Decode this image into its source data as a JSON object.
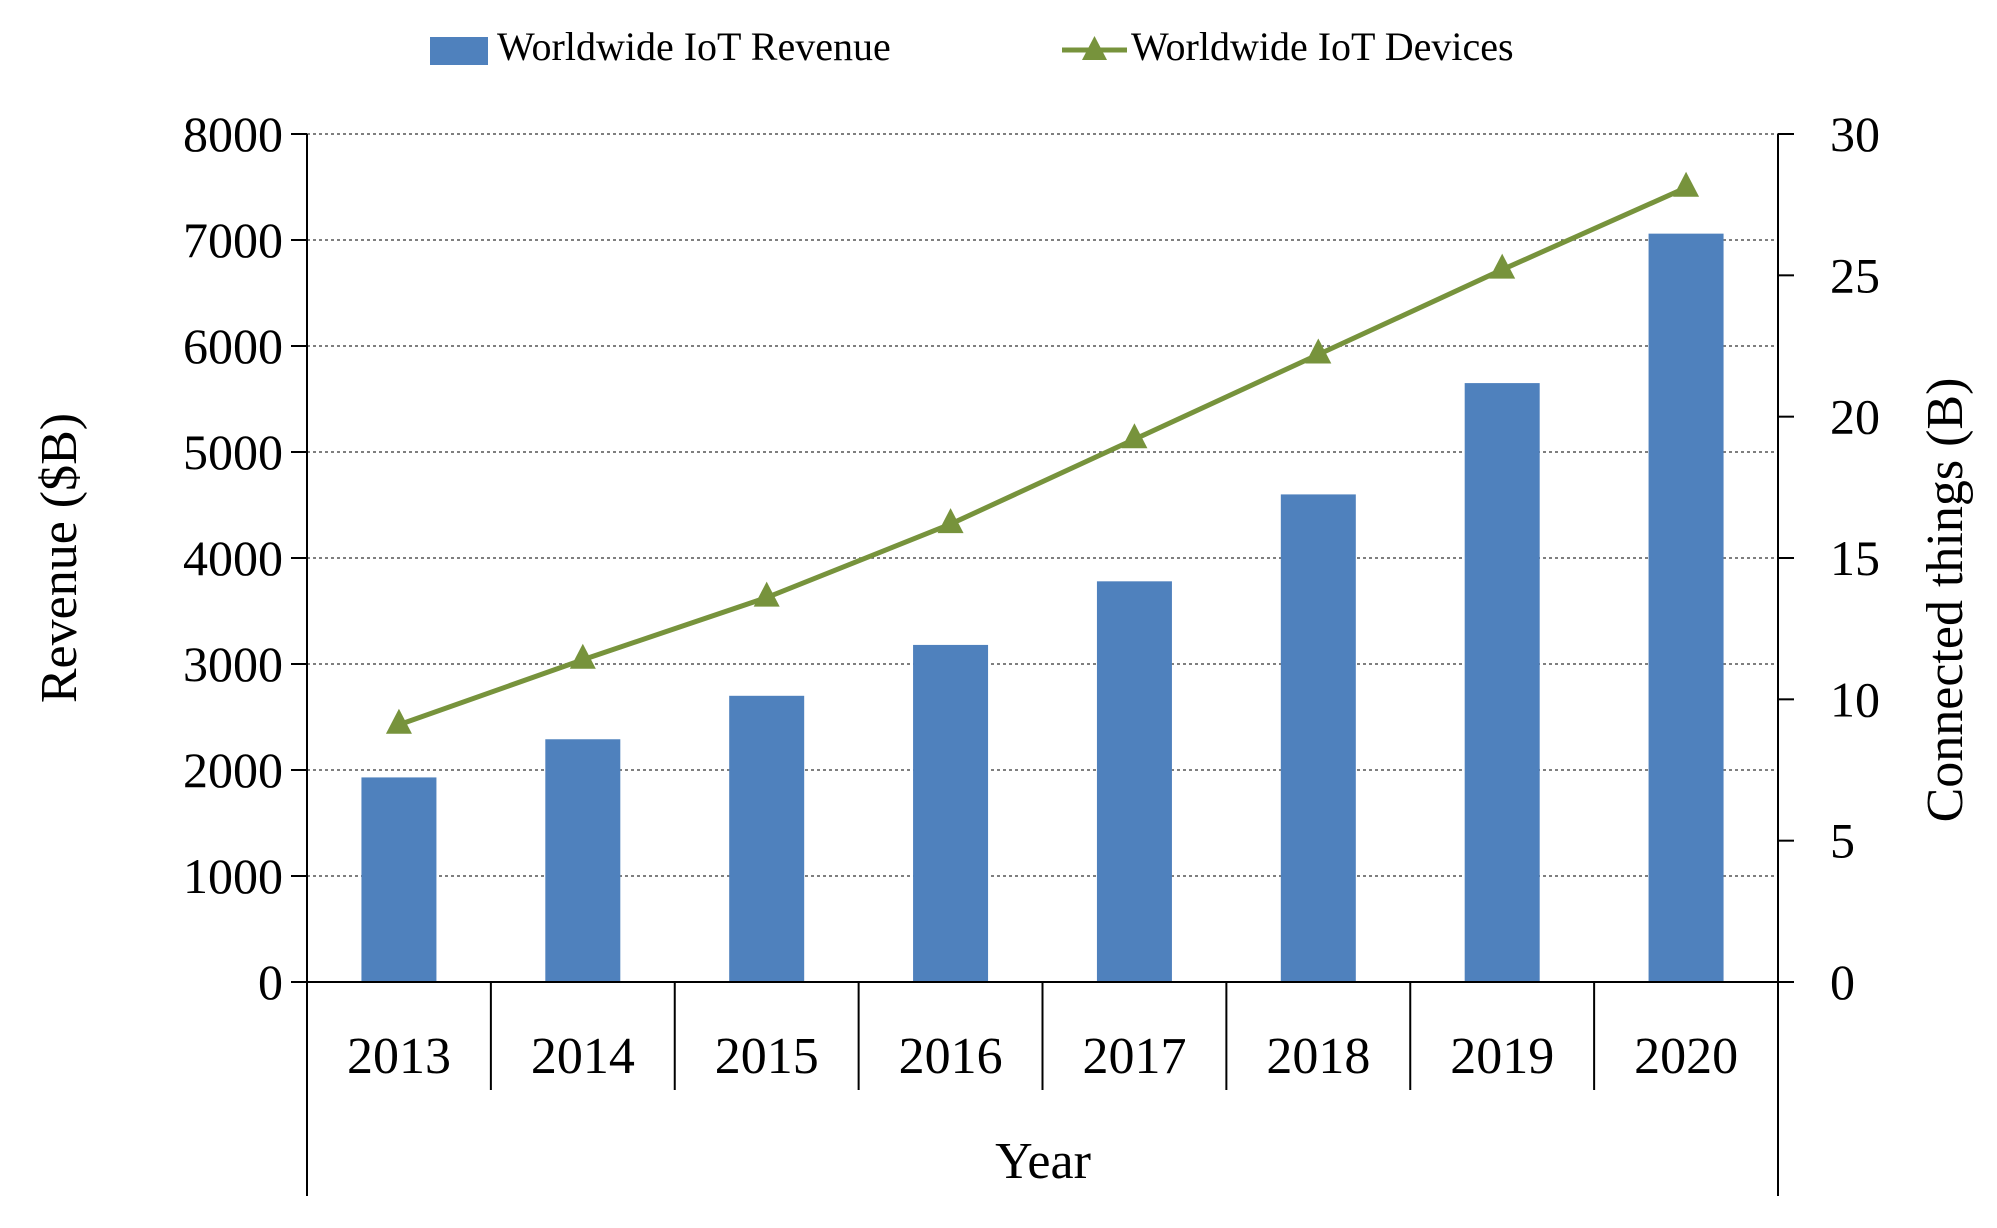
{
  "chart_data": {
    "type": "bar",
    "categories": [
      "2013",
      "2014",
      "2015",
      "2016",
      "2017",
      "2018",
      "2019",
      "2020"
    ],
    "series": [
      {
        "name": "Worldwide IoT Revenue",
        "type": "bar",
        "axis": "left",
        "color": "#4F81BD",
        "values": [
          1930,
          2290,
          2700,
          3180,
          3780,
          4600,
          5650,
          7060
        ]
      },
      {
        "name": "Worldwide IoT Devices",
        "type": "line",
        "axis": "right",
        "color": "#77933C",
        "values": [
          9.1,
          11.4,
          13.6,
          16.2,
          19.2,
          22.2,
          25.2,
          28.1
        ]
      }
    ],
    "xlabel": "Year",
    "ylabel": "Revenue ($B)",
    "y2label": "Connected things (B)",
    "ylim": [
      0,
      8000
    ],
    "y2lim": [
      0,
      30
    ],
    "yticks": [
      "0",
      "1000",
      "2000",
      "3000",
      "4000",
      "5000",
      "6000",
      "7000",
      "8000"
    ],
    "y2ticks": [
      "0",
      "5",
      "10",
      "15",
      "20",
      "25",
      "30"
    ],
    "grid": true,
    "legend_position": "top"
  }
}
